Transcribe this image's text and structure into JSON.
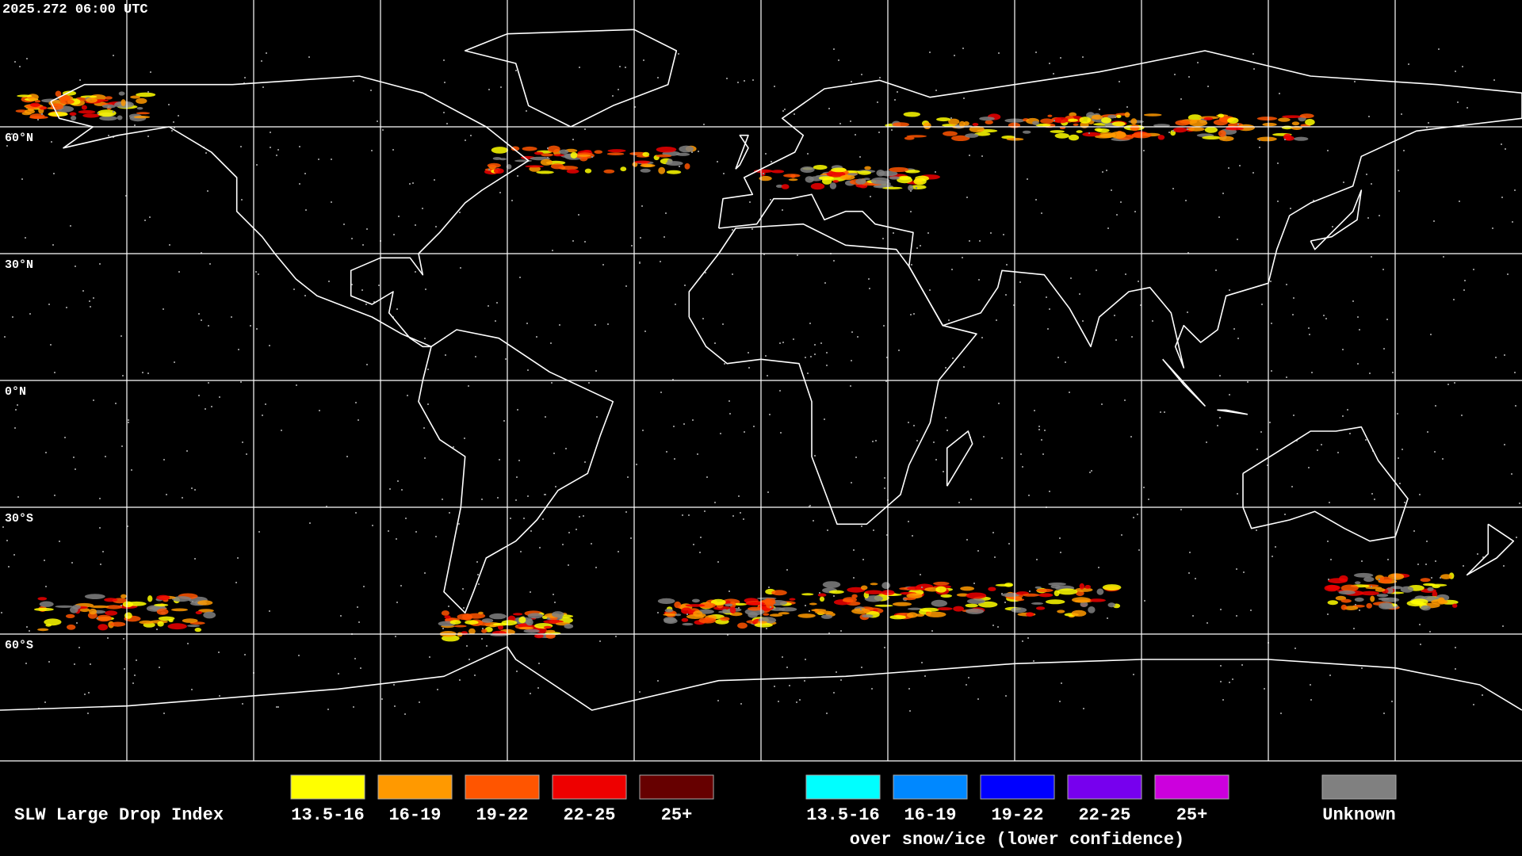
{
  "header": {
    "timestamp": "2025.272 06:00 UTC"
  },
  "map": {
    "lat_labels": [
      "60°N",
      "30°N",
      "0°N",
      "30°S",
      "60°S"
    ]
  },
  "legend": {
    "title": "SLW Large Drop Index",
    "groups": [
      {
        "items": [
          {
            "label": "13.5-16",
            "color": "#ffff00"
          },
          {
            "label": "16-19",
            "color": "#ff9900"
          },
          {
            "label": "19-22",
            "color": "#ff5500"
          },
          {
            "label": "22-25",
            "color": "#ee0000"
          },
          {
            "label": "25+",
            "color": "#660000"
          }
        ]
      },
      {
        "items": [
          {
            "label": "13.5-16",
            "color": "#00ffff"
          },
          {
            "label": "16-19",
            "color": "#0088ff"
          },
          {
            "label": "19-22",
            "color": "#0000ff"
          },
          {
            "label": "22-25",
            "color": "#7700ee"
          },
          {
            "label": "25+",
            "color": "#cc00dd"
          }
        ],
        "caption": "over snow/ice (lower confidence)"
      }
    ],
    "unknown": {
      "label": "Unknown",
      "color": "#808080"
    }
  }
}
